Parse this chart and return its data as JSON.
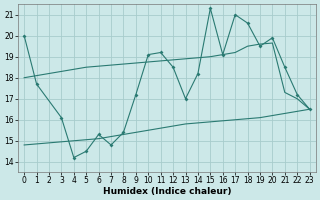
{
  "xlabel": "Humidex (Indice chaleur)",
  "xlim": [
    -0.5,
    23.5
  ],
  "ylim": [
    13.5,
    21.5
  ],
  "xticks": [
    0,
    1,
    2,
    3,
    4,
    5,
    6,
    7,
    8,
    9,
    10,
    11,
    12,
    13,
    14,
    15,
    16,
    17,
    18,
    19,
    20,
    21,
    22,
    23
  ],
  "yticks": [
    14,
    15,
    16,
    17,
    18,
    19,
    20,
    21
  ],
  "bg_color": "#cce8e8",
  "grid_color": "#a8cccc",
  "line_color": "#2a7a72",
  "line1_x": [
    0,
    1,
    3,
    4,
    5,
    6,
    7,
    8,
    9,
    10,
    11,
    12,
    13,
    14,
    15,
    16,
    17,
    18,
    19,
    20,
    21,
    22,
    23
  ],
  "line1_y": [
    20.0,
    17.7,
    16.1,
    14.2,
    14.5,
    15.3,
    14.8,
    15.4,
    17.2,
    19.1,
    19.2,
    18.5,
    17.0,
    18.2,
    21.3,
    19.1,
    21.0,
    20.6,
    19.5,
    19.9,
    18.5,
    17.2,
    16.5
  ],
  "line2_x": [
    0,
    1,
    2,
    3,
    4,
    5,
    6,
    7,
    8,
    9,
    10,
    11,
    12,
    13,
    14,
    15,
    16,
    17,
    18,
    19,
    20,
    21,
    22,
    23
  ],
  "line2_y": [
    18.0,
    18.1,
    18.2,
    18.3,
    18.4,
    18.5,
    18.55,
    18.6,
    18.65,
    18.7,
    18.75,
    18.8,
    18.85,
    18.9,
    18.95,
    19.0,
    19.1,
    19.2,
    19.5,
    19.6,
    19.65,
    17.3,
    17.0,
    16.5
  ],
  "line3_x": [
    0,
    1,
    2,
    3,
    4,
    5,
    6,
    7,
    8,
    9,
    10,
    11,
    12,
    13,
    14,
    15,
    16,
    17,
    18,
    19,
    20,
    21,
    22,
    23
  ],
  "line3_y": [
    14.8,
    14.85,
    14.9,
    14.95,
    15.0,
    15.05,
    15.1,
    15.2,
    15.3,
    15.4,
    15.5,
    15.6,
    15.7,
    15.8,
    15.85,
    15.9,
    15.95,
    16.0,
    16.05,
    16.1,
    16.2,
    16.3,
    16.4,
    16.5
  ]
}
